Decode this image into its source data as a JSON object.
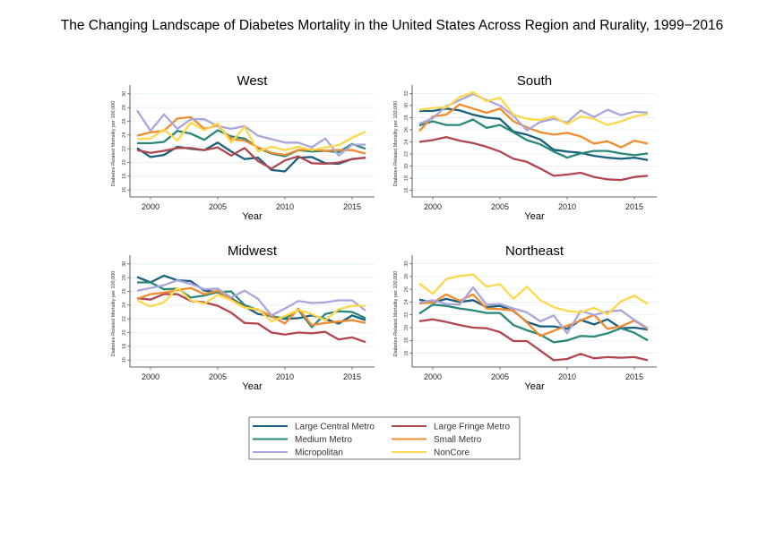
{
  "title": "The Changing Landscape of Diabetes Mortality in the United States Across Region and Rurality, 1999−2016",
  "chart_data": {
    "type": "line",
    "x": [
      1999,
      2000,
      2001,
      2002,
      2003,
      2004,
      2005,
      2006,
      2007,
      2008,
      2009,
      2010,
      2011,
      2012,
      2013,
      2014,
      2015,
      2016
    ],
    "xlabel": "Year",
    "ylabel": "Diabetes-Related Mortality per 100,000",
    "xticks": [
      2000,
      2005,
      2010,
      2015
    ],
    "grid": true,
    "legend_placement": "bottom",
    "legend": [
      {
        "name": "Large Central Metro",
        "color": "#1b5f7e"
      },
      {
        "name": "Large Fringe Metro",
        "color": "#b0474f"
      },
      {
        "name": "Medium Metro",
        "color": "#2a8878"
      },
      {
        "name": "Small Metro",
        "color": "#f38b2e"
      },
      {
        "name": "Micropolitan",
        "color": "#a9a6dc"
      },
      {
        "name": "NonCore",
        "color": "#fdd84b"
      }
    ],
    "panels": [
      {
        "title": "West",
        "ylim": [
          15.5,
          30.5
        ],
        "yticks": [
          16,
          18,
          20,
          22,
          24,
          26,
          28,
          30
        ],
        "series": [
          {
            "name": "Large Central Metro",
            "values": [
              22.1,
              20.8,
              21.1,
              22.3,
              22.0,
              21.8,
              22.9,
              21.6,
              20.5,
              20.7,
              18.9,
              18.7,
              20.7,
              20.8,
              19.9,
              19.8,
              20.5,
              20.7
            ]
          },
          {
            "name": "Large Fringe Metro",
            "values": [
              21.8,
              21.4,
              21.7,
              22.1,
              22.1,
              21.8,
              22.2,
              21.0,
              22.1,
              20.2,
              19.1,
              20.3,
              20.9,
              19.9,
              19.8,
              20.0,
              20.5,
              20.7
            ]
          },
          {
            "name": "Medium Metro",
            "values": [
              22.8,
              22.8,
              23.0,
              24.6,
              24.2,
              23.3,
              24.7,
              23.8,
              23.5,
              22.1,
              21.3,
              20.9,
              21.8,
              21.6,
              21.7,
              21.5,
              22.7,
              22.0
            ]
          },
          {
            "name": "Small Metro",
            "values": [
              23.9,
              24.4,
              24.6,
              26.4,
              26.6,
              24.9,
              25.4,
              23.4,
              23.2,
              22.2,
              21.4,
              21.1,
              21.8,
              21.9,
              21.7,
              21.8,
              21.8,
              21.3
            ]
          },
          {
            "name": "Micropolitan",
            "values": [
              27.6,
              24.6,
              27.0,
              24.9,
              26.3,
              26.3,
              25.3,
              24.9,
              25.3,
              23.9,
              23.4,
              22.9,
              22.9,
              22.2,
              23.5,
              21.0,
              22.6,
              22.6
            ]
          },
          {
            "name": "NonCore",
            "values": [
              23.4,
              23.5,
              24.8,
              23.2,
              25.8,
              24.7,
              25.7,
              22.9,
              25.2,
              21.6,
              22.3,
              21.8,
              22.3,
              21.8,
              22.2,
              22.5,
              23.6,
              24.5
            ]
          }
        ]
      },
      {
        "title": "South",
        "ylim": [
          15.5,
          32.5
        ],
        "yticks": [
          16,
          18,
          20,
          22,
          24,
          26,
          28,
          30,
          32
        ],
        "series": [
          {
            "name": "Large Central Metro",
            "values": [
              29.1,
              29.1,
              29.5,
              29.2,
              28.5,
              28.0,
              27.8,
              25.7,
              25.2,
              24.4,
              22.7,
              22.4,
              22.2,
              21.7,
              21.4,
              21.2,
              21.4,
              21.0
            ]
          },
          {
            "name": "Large Fringe Metro",
            "values": [
              24.0,
              24.3,
              24.8,
              24.2,
              23.8,
              23.2,
              22.4,
              21.2,
              20.7,
              19.6,
              18.4,
              18.6,
              18.9,
              18.2,
              17.8,
              17.7,
              18.2,
              18.4
            ]
          },
          {
            "name": "Medium Metro",
            "values": [
              26.7,
              27.4,
              26.8,
              26.8,
              27.7,
              26.3,
              26.8,
              25.6,
              24.3,
              23.6,
              22.4,
              21.4,
              22.1,
              22.5,
              22.5,
              22.1,
              21.8,
              22.1
            ]
          },
          {
            "name": "Small Metro",
            "values": [
              25.8,
              28.2,
              28.5,
              30.2,
              29.5,
              28.8,
              29.5,
              27.4,
              26.4,
              25.6,
              25.2,
              25.5,
              24.9,
              23.7,
              24.1,
              23.1,
              24.2,
              23.7
            ]
          },
          {
            "name": "Micropolitan",
            "values": [
              27.0,
              27.9,
              29.9,
              30.9,
              31.9,
              30.9,
              30.0,
              28.3,
              25.9,
              27.3,
              27.8,
              27.2,
              29.2,
              28.1,
              29.3,
              28.4,
              29.0,
              28.8
            ]
          },
          {
            "name": "NonCore",
            "values": [
              29.3,
              29.6,
              29.7,
              31.4,
              32.2,
              30.7,
              31.3,
              28.5,
              27.8,
              27.6,
              28.2,
              26.9,
              28.2,
              27.8,
              26.8,
              27.4,
              28.2,
              28.6
            ]
          }
        ]
      },
      {
        "title": "Midwest",
        "ylim": [
          15.5,
          30.5
        ],
        "yticks": [
          16,
          18,
          20,
          22,
          24,
          26,
          28,
          30
        ],
        "series": [
          {
            "name": "Large Central Metro",
            "values": [
              28.1,
              27.3,
              28.3,
              27.6,
              27.5,
              26.1,
              25.9,
              25.0,
              23.8,
              22.7,
              22.4,
              22.0,
              22.1,
              22.5,
              22.0,
              21.3,
              22.5,
              21.8
            ]
          },
          {
            "name": "Large Fringe Metro",
            "values": [
              25.0,
              24.8,
              25.6,
              25.6,
              24.6,
              24.4,
              23.9,
              22.9,
              21.4,
              21.3,
              20.0,
              19.7,
              20.0,
              19.9,
              20.1,
              19.0,
              19.3,
              18.6
            ]
          },
          {
            "name": "Medium Metro",
            "values": [
              27.3,
              27.3,
              26.3,
              26.4,
              25.1,
              25.4,
              25.9,
              26.0,
              24.0,
              23.3,
              22.3,
              22.1,
              23.3,
              20.8,
              22.7,
              23.1,
              23.0,
              22.1
            ]
          },
          {
            "name": "Small Metro",
            "values": [
              24.9,
              25.6,
              25.8,
              26.2,
              26.5,
              25.6,
              26.1,
              24.8,
              23.7,
              23.3,
              22.4,
              21.3,
              23.5,
              21.1,
              21.4,
              21.6,
              21.8,
              21.4
            ]
          },
          {
            "name": "Micropolitan",
            "values": [
              26.1,
              26.5,
              26.9,
              27.6,
              27.1,
              26.3,
              26.4,
              25.1,
              26.1,
              24.9,
              22.5,
              23.5,
              24.6,
              24.3,
              24.4,
              24.7,
              24.7,
              23.2
            ]
          },
          {
            "name": "NonCore",
            "values": [
              24.7,
              23.8,
              24.4,
              26.5,
              24.7,
              24.2,
              25.5,
              24.7,
              23.6,
              23.4,
              21.6,
              22.4,
              23.3,
              22.7,
              21.8,
              23.4,
              23.9,
              23.9
            ]
          }
        ]
      },
      {
        "title": "Northeast",
        "ylim": [
          14.4,
          30.5
        ],
        "yticks": [
          16,
          18,
          20,
          22,
          24,
          26,
          28,
          30
        ],
        "series": [
          {
            "name": "Large Central Metro",
            "values": [
              24.4,
              23.9,
              24.5,
              24.0,
              24.3,
              23.2,
              23.4,
              22.6,
              20.9,
              20.2,
              20.2,
              19.8,
              21.2,
              20.5,
              21.3,
              19.9,
              20.0,
              19.7
            ]
          },
          {
            "name": "Large Fringe Metro",
            "values": [
              21.0,
              21.3,
              20.9,
              20.4,
              20.0,
              19.9,
              19.3,
              17.9,
              17.9,
              16.4,
              14.9,
              15.1,
              15.9,
              15.2,
              15.4,
              15.3,
              15.4,
              14.9
            ]
          },
          {
            "name": "Medium Metro",
            "values": [
              22.2,
              23.6,
              23.4,
              23.0,
              22.7,
              22.3,
              22.3,
              20.4,
              19.6,
              18.9,
              17.7,
              18.0,
              18.7,
              18.6,
              19.1,
              19.9,
              19.2,
              18.0
            ]
          },
          {
            "name": "Small Metro",
            "values": [
              23.8,
              23.9,
              25.2,
              24.2,
              25.2,
              23.0,
              22.9,
              22.7,
              20.8,
              18.7,
              19.5,
              20.3,
              21.1,
              22.0,
              19.8,
              20.2,
              21.1,
              19.8
            ]
          },
          {
            "name": "Micropolitan",
            "values": [
              23.9,
              24.3,
              23.7,
              23.6,
              26.3,
              23.6,
              23.7,
              23.0,
              22.4,
              21.0,
              21.9,
              19.1,
              22.6,
              22.0,
              22.5,
              22.7,
              21.2,
              19.9
            ]
          },
          {
            "name": "NonCore",
            "values": [
              26.9,
              25.3,
              27.6,
              28.1,
              28.3,
              26.4,
              26.8,
              24.5,
              26.4,
              24.3,
              23.2,
              22.6,
              22.4,
              23.1,
              22.1,
              24.1,
              25.0,
              23.7
            ]
          }
        ]
      }
    ]
  }
}
